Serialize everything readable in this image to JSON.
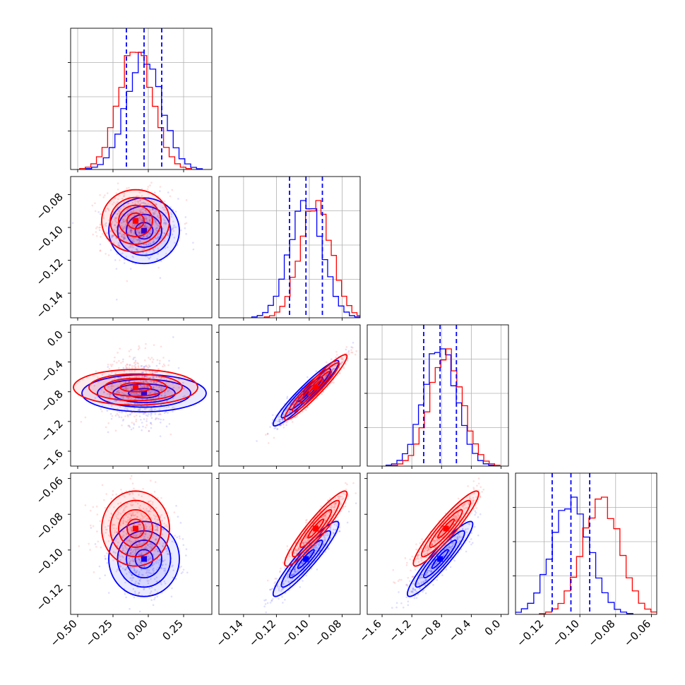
{
  "colors": {
    "series_a": "#0000ff",
    "series_b": "#ff0000",
    "quantile": "#0000ff",
    "grid": "#b0b0b0"
  },
  "chart_data": {
    "type": "corner",
    "grid": true,
    "parameters": [
      {
        "range": [
          -0.55,
          0.45
        ],
        "ticks": [
          -0.5,
          -0.25,
          0.0,
          0.25
        ],
        "labels": [
          "−0.50",
          "−0.25",
          "0.00",
          "0.25"
        ]
      },
      {
        "range": [
          -0.155,
          -0.069
        ],
        "ticks": [
          -0.14,
          -0.12,
          -0.1,
          -0.08
        ],
        "labels": [
          "−0.14",
          "−0.12",
          "−0.10",
          "−0.08"
        ]
      },
      {
        "range": [
          -1.8,
          0.1
        ],
        "ticks": [
          -1.6,
          -1.2,
          -0.8,
          -0.4,
          0.0
        ],
        "labels": [
          "−1.6",
          "−1.2",
          "−0.8",
          "−0.4",
          "0.0"
        ]
      },
      {
        "range": [
          -0.136,
          -0.057
        ],
        "ticks": [
          -0.12,
          -0.1,
          -0.08,
          -0.06
        ],
        "labels": [
          "−0.12",
          "−0.10",
          "−0.08",
          "−0.06"
        ]
      }
    ],
    "series": [
      {
        "color": "#0000ff",
        "mean": [
          -0.03,
          -0.102,
          -0.82,
          -0.105
        ],
        "sd": [
          0.125,
          0.01,
          0.22,
          0.0105
        ],
        "corr": [
          [
            1,
            0,
            0,
            0
          ],
          [
            0,
            1,
            0.95,
            0.93
          ],
          [
            0,
            0.95,
            1,
            0.93
          ],
          [
            0,
            0.93,
            0.93,
            1
          ]
        ]
      },
      {
        "color": "#ff0000",
        "mean": [
          -0.09,
          -0.096,
          -0.74,
          -0.088
        ],
        "sd": [
          0.12,
          0.0095,
          0.22,
          0.0105
        ],
        "corr": [
          [
            1,
            0,
            0,
            0
          ],
          [
            0,
            1,
            0.95,
            0.93
          ],
          [
            0,
            0.95,
            1,
            0.93
          ],
          [
            0,
            0.93,
            0.93,
            1
          ]
        ]
      }
    ],
    "quantile_lines": [
      [
        -0.155,
        -0.03,
        0.095
      ],
      [
        -0.112,
        -0.102,
        -0.092
      ],
      [
        -1.04,
        -0.82,
        -0.6
      ],
      [
        -0.1155,
        -0.105,
        -0.0945
      ]
    ],
    "levels_sigma": [
      0.5,
      1.0,
      1.5,
      2.0
    ]
  }
}
